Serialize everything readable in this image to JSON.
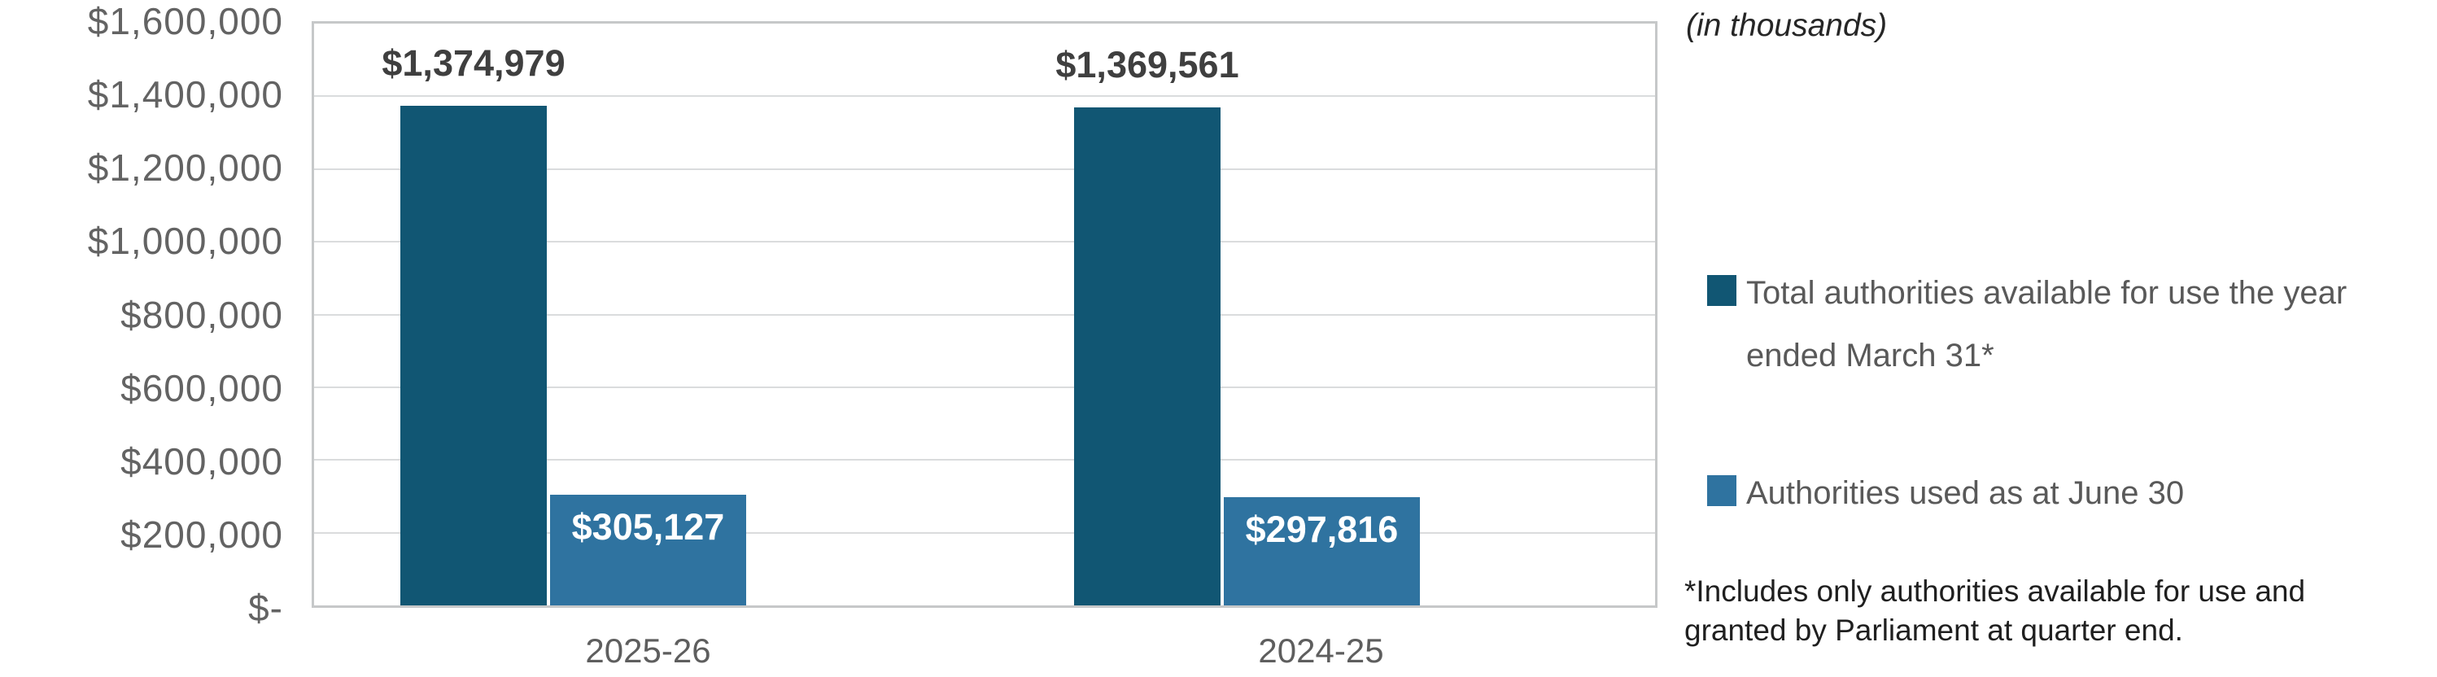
{
  "note": "(in thousands)",
  "legend": {
    "item1_line1": "Total authorities available for use the year",
    "item1_line2": "ended March 31*",
    "item2_line1": "Authorities used as at June 30"
  },
  "footnote": {
    "line1": "*Includes only authorities available for use and",
    "line2": "granted by Parliament at quarter end."
  },
  "chart_data": {
    "type": "bar",
    "categories": [
      "2025-26",
      "2024-25"
    ],
    "series": [
      {
        "name": "Total authorities available for use the year ended March 31*",
        "color": "#115673",
        "values": [
          1374979,
          1369561
        ],
        "labels": [
          "$1,374,979",
          "$1,369,561"
        ]
      },
      {
        "name": "Authorities used as at June 30",
        "color": "#2f73a0",
        "values": [
          305127,
          297816
        ],
        "labels": [
          "$305,127",
          "$297,816"
        ]
      }
    ],
    "title": "",
    "xlabel": "",
    "ylabel": "",
    "ylim": [
      0,
      1600000
    ],
    "y_ticks": [
      "$1,600,000",
      "$1,400,000",
      "$1,200,000",
      "$1,000,000",
      "$800,000",
      "$600,000",
      "$400,000",
      "$200,000",
      "$-"
    ],
    "grid": true,
    "legend_position": "right",
    "data_label_note": "(in thousands)"
  }
}
